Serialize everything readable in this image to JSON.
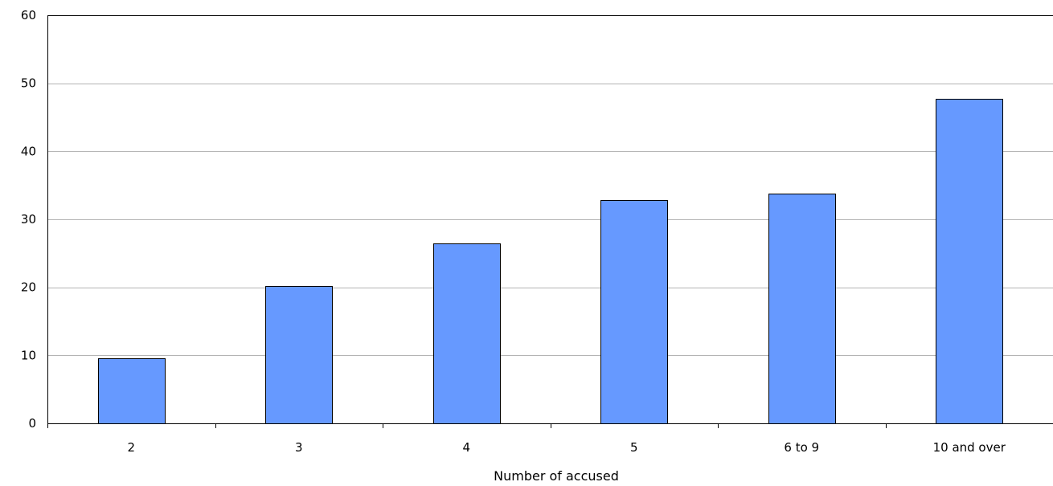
{
  "chart_data": {
    "type": "bar",
    "title": "",
    "xlabel": "Number of accused",
    "ylabel": "",
    "categories": [
      "2",
      "3",
      "4",
      "5",
      "6 to 9",
      "10 and over"
    ],
    "values": [
      9.6,
      20.2,
      26.4,
      32.8,
      33.8,
      47.7
    ],
    "ylim": [
      0,
      60
    ],
    "yticks": [
      "0",
      "10",
      "20",
      "30",
      "40",
      "50",
      "60"
    ],
    "grid": true,
    "legend": "none",
    "colors": {
      "bar": "#6699ff",
      "bar_outline": "#000000",
      "grid": "#b4b4b4",
      "axis": "#000000"
    }
  }
}
